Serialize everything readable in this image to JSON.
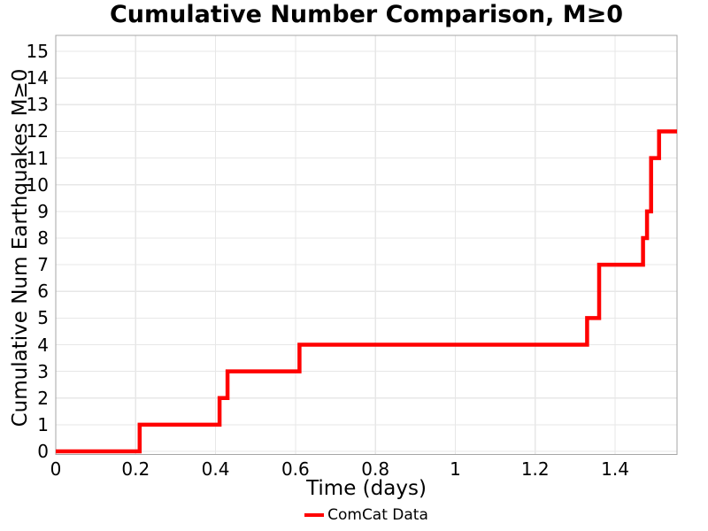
{
  "chart_data": {
    "type": "line",
    "subtype": "step-post",
    "title": "Cumulative Number Comparison, M≥0",
    "xlabel": "Time (days)",
    "ylabel": "Cumulative Num Earthquakes M≥0",
    "xlim": [
      0,
      1.555
    ],
    "ylim": [
      -0.115,
      15.6
    ],
    "grid": true,
    "x_ticks": [
      {
        "value": 0,
        "label": "0"
      },
      {
        "value": 0.2,
        "label": "0.2"
      },
      {
        "value": 0.4,
        "label": "0.4"
      },
      {
        "value": 0.6,
        "label": "0.6"
      },
      {
        "value": 0.8,
        "label": "0.8"
      },
      {
        "value": 1,
        "label": "1"
      },
      {
        "value": 1.2,
        "label": "1.2"
      },
      {
        "value": 1.4,
        "label": "1.4"
      }
    ],
    "y_ticks": [
      {
        "value": 0,
        "label": "0"
      },
      {
        "value": 1,
        "label": "1"
      },
      {
        "value": 2,
        "label": "2"
      },
      {
        "value": 3,
        "label": "3"
      },
      {
        "value": 4,
        "label": "4"
      },
      {
        "value": 5,
        "label": "5"
      },
      {
        "value": 6,
        "label": "6"
      },
      {
        "value": 7,
        "label": "7"
      },
      {
        "value": 8,
        "label": "8"
      },
      {
        "value": 9,
        "label": "9"
      },
      {
        "value": 10,
        "label": "10"
      },
      {
        "value": 11,
        "label": "11"
      },
      {
        "value": 12,
        "label": "12"
      },
      {
        "value": 13,
        "label": "13"
      },
      {
        "value": 14,
        "label": "14"
      },
      {
        "value": 15,
        "label": "15"
      }
    ],
    "series": [
      {
        "name": "ComCat Data",
        "color": "#ff0000",
        "line_width": 4.5,
        "step": "post",
        "points": [
          [
            0,
            0
          ],
          [
            0.21,
            1
          ],
          [
            0.41,
            2
          ],
          [
            0.43,
            3
          ],
          [
            0.61,
            4
          ],
          [
            1.33,
            5
          ],
          [
            1.36,
            7
          ],
          [
            1.47,
            8
          ],
          [
            1.48,
            9
          ],
          [
            1.49,
            11
          ],
          [
            1.51,
            12
          ],
          [
            1.555,
            12
          ]
        ]
      }
    ],
    "legend": {
      "position": "bottom-center",
      "entries": [
        {
          "label": "ComCat Data",
          "color": "#ff0000"
        }
      ]
    },
    "colors": {
      "background": "#ffffff",
      "plot_background": "#ffffff",
      "grid": "#e7e7e7",
      "border": "#a6a6a6",
      "text": "#000000",
      "line": "#ff0000"
    }
  }
}
